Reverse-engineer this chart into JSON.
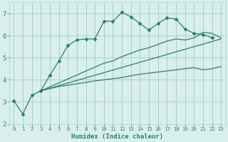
{
  "xlabel": "Humidex (Indice chaleur)",
  "bg_color": "#d8efec",
  "grid_color": "#aacfcc",
  "line_color": "#2e7d72",
  "xlim": [
    -0.5,
    23.5
  ],
  "ylim": [
    2.0,
    7.5
  ],
  "xticks": [
    0,
    1,
    2,
    3,
    4,
    5,
    6,
    7,
    8,
    9,
    10,
    11,
    12,
    13,
    14,
    15,
    16,
    17,
    18,
    19,
    20,
    21,
    22,
    23
  ],
  "yticks": [
    2,
    3,
    4,
    5,
    6,
    7
  ],
  "line1_x": [
    0,
    1,
    2,
    3,
    4,
    5,
    6,
    7,
    8,
    9,
    10,
    11,
    12,
    13,
    14,
    15,
    16,
    17,
    18,
    19,
    20,
    21,
    22
  ],
  "line1_y": [
    3.05,
    2.45,
    3.3,
    3.5,
    4.2,
    4.85,
    5.55,
    5.8,
    5.85,
    5.85,
    6.65,
    6.65,
    7.05,
    6.85,
    6.55,
    6.25,
    6.55,
    6.8,
    6.75,
    6.3,
    6.1,
    6.05,
    5.9
  ],
  "line2_x": [
    3,
    4,
    5,
    6,
    7,
    8,
    9,
    10,
    11,
    12,
    13,
    14,
    15,
    16,
    17,
    18,
    19,
    20,
    21,
    22,
    23
  ],
  "line2_y": [
    3.5,
    3.6,
    3.7,
    3.75,
    3.82,
    3.88,
    3.95,
    4.0,
    4.05,
    4.1,
    4.18,
    4.25,
    4.3,
    4.35,
    4.4,
    4.45,
    4.5,
    4.55,
    4.45,
    4.5,
    4.6
  ],
  "line3_x": [
    3,
    23
  ],
  "line3_y": [
    3.5,
    5.85
  ],
  "line4_x": [
    3,
    10,
    11,
    12,
    13,
    14,
    15,
    16,
    17,
    18,
    19,
    20,
    21,
    22,
    23
  ],
  "line4_y": [
    3.5,
    4.75,
    4.85,
    5.05,
    5.2,
    5.35,
    5.45,
    5.6,
    5.75,
    5.85,
    5.8,
    5.9,
    6.15,
    6.1,
    5.9
  ]
}
